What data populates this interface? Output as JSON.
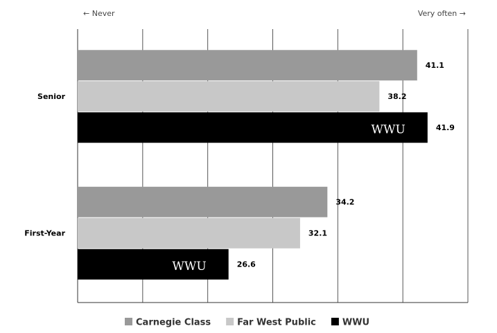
{
  "chart_data": {
    "type": "hbar",
    "annotations": [
      "← Never",
      "Very often →"
    ],
    "categories": [
      "Senior",
      "First-Year"
    ],
    "series": [
      {
        "name": "Carnegie Class",
        "color": "#999999",
        "values": [
          41.1,
          34.2
        ]
      },
      {
        "name": "Far West Public",
        "color": "#c8c8c8",
        "values": [
          38.2,
          32.1
        ]
      },
      {
        "name": "WWU",
        "color": "#000000",
        "values": [
          41.9,
          26.6
        ]
      }
    ],
    "xlim": [
      15,
      45
    ],
    "xticks": [
      15,
      20,
      25,
      30,
      35,
      40,
      45
    ],
    "grid": true,
    "legend": "bottom"
  }
}
